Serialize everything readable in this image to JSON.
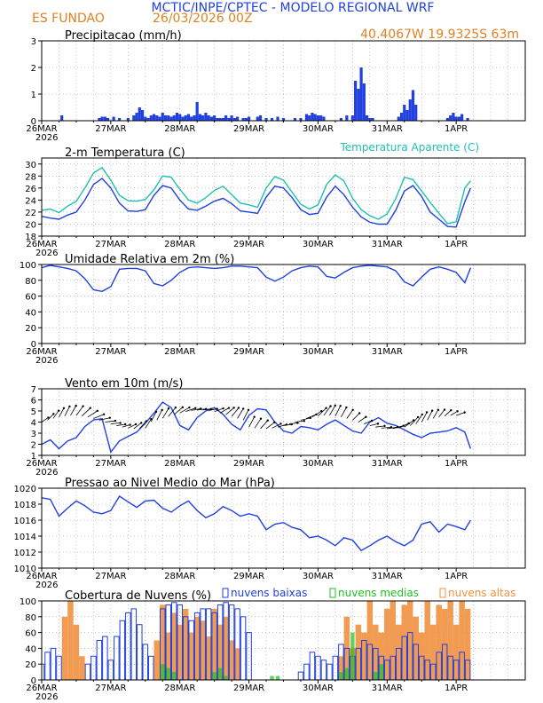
{
  "header": {
    "title": "MCTIC/INPE/CPTEC - MODELO REGIONAL WRF",
    "location": "ES FUNDAO",
    "run": "26/03/2026 00Z",
    "coords": "40.4067W  19.9325S  63m"
  },
  "x_axis": {
    "ticks": [
      "26MAR",
      "27MAR",
      "28MAR",
      "29MAR",
      "30MAR",
      "31MAR",
      "1APR"
    ],
    "year": "2026",
    "hours": 144
  },
  "colors": {
    "blue": "#2040e0",
    "cyan": "#20c0b0",
    "orange": "#f09040",
    "green": "#20c020",
    "title": "#2040e0",
    "label_orange": "#e08020"
  },
  "chart_data": [
    {
      "id": "precip",
      "type": "bar",
      "title": "Precipitacao (mm/h)",
      "ylim": [
        0,
        3
      ],
      "yticks": [
        0,
        1,
        2,
        3
      ],
      "x_hours": [
        7,
        20,
        21,
        22,
        23,
        25,
        27,
        30,
        32,
        33,
        34,
        35,
        36,
        37,
        38,
        39,
        40,
        41,
        42,
        43,
        44,
        45,
        46,
        47,
        48,
        49,
        50,
        51,
        52,
        53,
        54,
        55,
        56,
        57,
        58,
        59,
        60,
        61,
        62,
        63,
        64,
        65,
        66,
        67,
        68,
        70,
        71,
        72,
        75,
        76,
        78,
        80,
        82,
        84,
        88,
        90,
        92,
        93,
        94,
        95,
        96,
        97,
        98,
        104,
        106,
        108,
        109,
        110,
        111,
        112,
        113,
        114,
        115,
        124,
        125,
        126,
        127,
        128,
        129,
        130,
        141,
        142,
        143,
        144,
        145,
        146,
        148
      ],
      "values": [
        0.2,
        0.1,
        0.15,
        0.15,
        0.1,
        0.15,
        0.1,
        0.1,
        0.2,
        0.3,
        0.5,
        0.4,
        0.15,
        0.1,
        0.2,
        0.25,
        0.2,
        0.15,
        0.3,
        0.2,
        0.2,
        0.15,
        0.2,
        0.3,
        0.25,
        0.15,
        0.2,
        0.25,
        0.15,
        0.2,
        0.7,
        0.25,
        0.2,
        0.3,
        0.2,
        0.15,
        0.2,
        0.1,
        0.1,
        0.1,
        0.2,
        0.1,
        0.2,
        0.1,
        0.15,
        0.1,
        0.1,
        0.15,
        0.15,
        0.2,
        0.1,
        0.1,
        0.15,
        0.1,
        0.1,
        0.1,
        0.25,
        0.2,
        0.3,
        0.25,
        0.2,
        0.2,
        0.15,
        0.1,
        0.2,
        0.2,
        1.5,
        1.2,
        2.0,
        1.4,
        0.2,
        0.1,
        0.1,
        0.15,
        0.3,
        0.6,
        0.4,
        0.8,
        1.15,
        0.6,
        0.1,
        0.2,
        0.3,
        0.15,
        0.15,
        0.25,
        0.1
      ]
    },
    {
      "id": "temp",
      "type": "line",
      "title": "2-m Temperatura (C)",
      "legend2": "Temperatura Aparente (C)",
      "ylim": [
        18,
        31
      ],
      "yticks": [
        18,
        20,
        22,
        24,
        26,
        28,
        30
      ],
      "series": [
        {
          "name": "2-m Temperatura (C)",
          "color": "blue",
          "x": [
            0,
            3,
            6,
            9,
            12,
            15,
            18,
            21,
            24,
            27,
            30,
            33,
            36,
            39,
            42,
            45,
            48,
            51,
            54,
            57,
            60,
            63,
            66,
            69,
            72,
            75,
            78,
            81,
            84,
            87,
            90,
            93,
            96,
            99,
            102,
            105,
            108,
            111,
            114,
            117,
            120,
            123,
            126,
            129,
            132,
            135,
            138,
            141,
            144,
            147,
            149
          ],
          "values": [
            21.3,
            21,
            20.8,
            21.5,
            22,
            24,
            26.6,
            27.6,
            26,
            23.5,
            22.2,
            22.1,
            22.4,
            24.8,
            26.4,
            26,
            24,
            22.5,
            22.3,
            23,
            23.8,
            24.3,
            23.4,
            22.2,
            22,
            21.8,
            24.5,
            26.3,
            26,
            24.4,
            22.4,
            21.6,
            21.8,
            24.5,
            26.3,
            24.9,
            22.8,
            21.2,
            20.3,
            20,
            20,
            22.3,
            25.5,
            26.4,
            24.6,
            22,
            20.8,
            19.6,
            19.5,
            23.7,
            26
          ]
        },
        {
          "name": "Temperatura Aparente (C)",
          "color": "cyan",
          "x": [
            0,
            3,
            6,
            9,
            12,
            15,
            18,
            21,
            24,
            27,
            30,
            33,
            36,
            39,
            42,
            45,
            48,
            51,
            54,
            57,
            60,
            63,
            66,
            69,
            72,
            75,
            78,
            81,
            84,
            87,
            90,
            93,
            96,
            99,
            102,
            105,
            108,
            111,
            114,
            117,
            120,
            123,
            126,
            129,
            132,
            135,
            138,
            141,
            144,
            147,
            149
          ],
          "values": [
            22.3,
            22.5,
            21.9,
            23,
            23.8,
            26,
            28.5,
            29.4,
            27.3,
            24.8,
            23.9,
            23.8,
            24.1,
            25.7,
            28,
            27.8,
            25.8,
            24,
            23.5,
            24.4,
            25.6,
            26.3,
            24.9,
            23.5,
            23.2,
            22.8,
            26,
            27.9,
            27.3,
            25.3,
            23.3,
            22.5,
            23.2,
            26.6,
            28.2,
            27.2,
            24.3,
            22.4,
            21.4,
            20.8,
            21.7,
            24.2,
            27.8,
            27.4,
            25.5,
            23.6,
            21.8,
            20.1,
            20.4,
            26,
            27.2
          ]
        }
      ]
    },
    {
      "id": "rh",
      "type": "line",
      "title": "Umidade Relativa em 2m (%)",
      "ylim": [
        0,
        100
      ],
      "yticks": [
        0,
        20,
        40,
        60,
        80,
        100
      ],
      "series": [
        {
          "name": "Umidade Relativa em 2m (%)",
          "color": "blue",
          "x": [
            0,
            3,
            6,
            9,
            12,
            15,
            18,
            21,
            24,
            27,
            30,
            33,
            36,
            39,
            42,
            45,
            48,
            51,
            54,
            57,
            60,
            63,
            66,
            69,
            72,
            75,
            78,
            81,
            84,
            87,
            90,
            93,
            96,
            99,
            102,
            105,
            108,
            111,
            114,
            117,
            120,
            123,
            126,
            129,
            132,
            135,
            138,
            141,
            144,
            147,
            149
          ],
          "values": [
            96,
            99,
            97,
            95,
            92,
            82,
            68,
            66,
            72,
            94,
            95,
            95,
            92,
            76,
            73,
            80,
            90,
            96,
            97,
            96,
            95,
            96,
            98,
            98,
            97,
            96,
            84,
            79,
            84,
            92,
            96,
            98,
            97,
            85,
            83,
            90,
            96,
            98,
            99,
            98,
            97,
            92,
            78,
            73,
            84,
            94,
            97,
            94,
            90,
            77,
            96
          ]
        }
      ]
    },
    {
      "id": "wind",
      "type": "line",
      "title": "Vento em 10m (m/s)",
      "ylim": [
        1,
        7
      ],
      "yticks": [
        1,
        2,
        3,
        4,
        5,
        6,
        7
      ],
      "series": [
        {
          "name": "Vento em 10m (m/s)",
          "color": "blue",
          "x": [
            0,
            3,
            6,
            9,
            12,
            15,
            18,
            21,
            24,
            27,
            30,
            33,
            36,
            39,
            42,
            45,
            48,
            51,
            54,
            57,
            60,
            63,
            66,
            69,
            72,
            75,
            78,
            81,
            84,
            87,
            90,
            93,
            96,
            99,
            102,
            105,
            108,
            111,
            114,
            117,
            120,
            123,
            126,
            129,
            132,
            135,
            138,
            141,
            144,
            147,
            149
          ],
          "values": [
            2,
            2.4,
            1.6,
            2.3,
            2.6,
            3.6,
            4.2,
            4.3,
            1.3,
            2.3,
            2.7,
            3.1,
            3.9,
            4.8,
            5.8,
            5.3,
            3.7,
            3.3,
            4.4,
            5,
            5.3,
            4.7,
            3.8,
            3.3,
            4.6,
            5.2,
            5.1,
            4,
            3.2,
            3,
            3.6,
            3.5,
            3.3,
            3.8,
            4.2,
            3.7,
            3.2,
            3,
            4,
            4.4,
            3.9,
            3.7,
            3.3,
            2.9,
            2.6,
            3,
            3.1,
            3.2,
            3.5,
            3.1,
            1.6
          ]
        }
      ]
    },
    {
      "id": "pressure",
      "type": "line",
      "title": "Pressao ao Nivel Medio do Mar (hPa)",
      "ylim": [
        1010,
        1020
      ],
      "yticks": [
        1010,
        1012,
        1014,
        1016,
        1018,
        1020
      ],
      "series": [
        {
          "name": "Pressao ao Nivel Medio do Mar (hPa)",
          "color": "blue",
          "x": [
            0,
            3,
            6,
            9,
            12,
            15,
            18,
            21,
            24,
            27,
            30,
            33,
            36,
            39,
            42,
            45,
            48,
            51,
            54,
            57,
            60,
            63,
            66,
            69,
            72,
            75,
            78,
            81,
            84,
            87,
            90,
            93,
            96,
            99,
            102,
            105,
            108,
            111,
            114,
            117,
            120,
            123,
            126,
            129,
            132,
            135,
            138,
            141,
            144,
            147,
            149
          ],
          "values": [
            1018.8,
            1018.6,
            1016.5,
            1017.5,
            1018.4,
            1017.8,
            1017,
            1016.8,
            1017.2,
            1019,
            1018.3,
            1017.6,
            1018.4,
            1018.5,
            1017.5,
            1017,
            1017.8,
            1018.4,
            1017.2,
            1016.3,
            1016.8,
            1017.7,
            1017.2,
            1016.5,
            1016.8,
            1016.5,
            1014.8,
            1015.5,
            1015.7,
            1015.1,
            1014.8,
            1013.8,
            1014,
            1013.5,
            1012.8,
            1013.8,
            1013.5,
            1012.2,
            1012.8,
            1013.5,
            1014,
            1013.3,
            1012.8,
            1013.5,
            1015.5,
            1015.8,
            1014.5,
            1015.5,
            1015.2,
            1014.8,
            1016
          ]
        }
      ]
    },
    {
      "id": "clouds",
      "type": "bar",
      "title": "Cobertura de Nuvens (%)",
      "ylim": [
        0,
        100
      ],
      "yticks": [
        0,
        20,
        40,
        60,
        80,
        100
      ],
      "legend": [
        "nuvens baixas",
        "nuvens medias",
        "nuvens altas"
      ],
      "series": [
        {
          "name": "nuvens baixas",
          "color": "blue",
          "x": [
            0,
            2,
            4,
            6,
            8,
            10,
            12,
            14,
            16,
            18,
            20,
            22,
            24,
            26,
            28,
            30,
            32,
            34,
            36,
            38,
            40,
            42,
            44,
            46,
            48,
            50,
            52,
            54,
            56,
            58,
            60,
            62,
            64,
            66,
            68,
            70,
            72,
            74,
            76,
            78,
            80,
            82,
            84,
            86,
            88,
            90,
            92,
            94,
            96,
            98,
            100,
            102,
            104,
            106,
            108,
            110,
            112,
            114,
            116,
            118,
            120,
            122,
            124,
            126,
            128,
            130,
            132,
            134,
            136,
            138,
            140,
            142,
            144,
            146,
            148
          ],
          "values": [
            20,
            35,
            40,
            30,
            0,
            0,
            0,
            0,
            20,
            30,
            50,
            55,
            25,
            55,
            75,
            85,
            90,
            70,
            45,
            30,
            0,
            90,
            95,
            98,
            95,
            80,
            75,
            85,
            90,
            90,
            85,
            95,
            98,
            95,
            90,
            80,
            60,
            0,
            0,
            0,
            0,
            0,
            0,
            0,
            0,
            10,
            20,
            35,
            30,
            25,
            20,
            30,
            45,
            40,
            30,
            40,
            50,
            45,
            40,
            30,
            25,
            30,
            40,
            55,
            60,
            45,
            30,
            25,
            20,
            35,
            45,
            30,
            25,
            35,
            25
          ]
        },
        {
          "name": "nuvens medias",
          "color": "green",
          "x": [
            42,
            44,
            46,
            60,
            62,
            64,
            80,
            82,
            104,
            106,
            108,
            116,
            118
          ],
          "values": [
            20,
            15,
            10,
            10,
            15,
            5,
            5,
            5,
            10,
            15,
            60,
            10,
            20
          ]
        },
        {
          "name": "nuvens altas",
          "color": "orange",
          "x": [
            8,
            10,
            12,
            14,
            40,
            42,
            44,
            46,
            48,
            50,
            52,
            54,
            56,
            58,
            60,
            62,
            64,
            66,
            68,
            104,
            106,
            108,
            110,
            112,
            114,
            116,
            118,
            120,
            122,
            124,
            126,
            128,
            130,
            132,
            134,
            136,
            138,
            140,
            142,
            144,
            146,
            148
          ],
          "values": [
            80,
            100,
            70,
            30,
            50,
            95,
            60,
            85,
            70,
            90,
            60,
            80,
            75,
            55,
            90,
            70,
            80,
            50,
            40,
            30,
            80,
            40,
            70,
            60,
            100,
            70,
            60,
            90,
            100,
            70,
            95,
            100,
            80,
            60,
            100,
            70,
            95,
            90,
            100,
            70,
            100,
            90
          ]
        }
      ]
    }
  ]
}
